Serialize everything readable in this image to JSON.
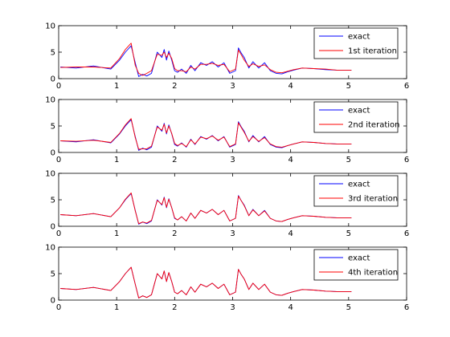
{
  "chart_data": [
    {
      "type": "line",
      "xlim": [
        0,
        6
      ],
      "ylim": [
        0,
        10
      ],
      "xticks": [
        0,
        1,
        2,
        3,
        4,
        5,
        6
      ],
      "yticks": [
        0,
        5,
        10
      ],
      "grid": false,
      "legend_position": "top-right",
      "series": [
        {
          "name": "exact",
          "color": "#0000ff",
          "x": [
            0.03,
            0.3,
            0.6,
            0.9,
            1.05,
            1.15,
            1.25,
            1.32,
            1.38,
            1.45,
            1.52,
            1.6,
            1.7,
            1.78,
            1.82,
            1.86,
            1.9,
            1.95,
            2.0,
            2.05,
            2.12,
            2.2,
            2.28,
            2.35,
            2.45,
            2.55,
            2.65,
            2.75,
            2.85,
            2.95,
            3.05,
            3.1,
            3.15,
            3.2,
            3.28,
            3.35,
            3.45,
            3.55,
            3.65,
            3.75,
            3.85,
            3.95,
            4.05,
            4.2,
            4.4,
            4.6,
            4.8,
            5.05
          ],
          "y": [
            2.2,
            2.0,
            2.4,
            1.8,
            3.5,
            5.0,
            6.2,
            3.0,
            0.4,
            0.8,
            0.5,
            1.0,
            5.0,
            4.0,
            5.5,
            3.5,
            5.2,
            3.5,
            1.5,
            1.2,
            1.8,
            1.0,
            2.5,
            1.5,
            3.0,
            2.5,
            3.2,
            2.2,
            3.0,
            1.0,
            1.5,
            5.8,
            4.8,
            4.0,
            2.0,
            3.2,
            2.0,
            3.0,
            1.5,
            1.0,
            0.9,
            1.3,
            1.6,
            2.0,
            1.9,
            1.7,
            1.6,
            1.6
          ]
        },
        {
          "name": "1st iteration",
          "color": "#ff0000",
          "x": [
            0.03,
            0.3,
            0.6,
            0.9,
            1.05,
            1.15,
            1.25,
            1.32,
            1.38,
            1.45,
            1.52,
            1.6,
            1.7,
            1.78,
            1.82,
            1.86,
            1.9,
            1.95,
            2.0,
            2.05,
            2.12,
            2.2,
            2.28,
            2.35,
            2.45,
            2.55,
            2.65,
            2.75,
            2.85,
            2.95,
            3.05,
            3.1,
            3.15,
            3.2,
            3.28,
            3.35,
            3.45,
            3.55,
            3.65,
            3.75,
            3.85,
            3.95,
            4.05,
            4.2,
            4.4,
            4.6,
            4.8,
            5.05
          ],
          "y": [
            2.1,
            2.2,
            2.2,
            2.0,
            3.8,
            5.5,
            6.7,
            2.5,
            1.0,
            0.6,
            1.0,
            1.5,
            4.6,
            4.4,
            5.0,
            4.0,
            4.8,
            3.8,
            1.9,
            1.5,
            1.5,
            1.3,
            2.2,
            1.8,
            2.7,
            2.7,
            2.9,
            2.5,
            2.7,
            1.3,
            1.8,
            5.4,
            4.5,
            3.5,
            2.3,
            2.8,
            2.3,
            2.6,
            1.7,
            1.2,
            1.1,
            1.4,
            1.7,
            2.0,
            1.9,
            1.8,
            1.6,
            1.6
          ]
        }
      ]
    },
    {
      "type": "line",
      "xlim": [
        0,
        6
      ],
      "ylim": [
        0,
        10
      ],
      "xticks": [
        0,
        1,
        2,
        3,
        4,
        5,
        6
      ],
      "yticks": [
        0,
        5,
        10
      ],
      "grid": false,
      "legend_position": "top-right",
      "series": [
        {
          "name": "exact",
          "color": "#0000ff",
          "x": [
            0.03,
            0.3,
            0.6,
            0.9,
            1.05,
            1.15,
            1.25,
            1.32,
            1.38,
            1.45,
            1.52,
            1.6,
            1.7,
            1.78,
            1.82,
            1.86,
            1.9,
            1.95,
            2.0,
            2.05,
            2.12,
            2.2,
            2.28,
            2.35,
            2.45,
            2.55,
            2.65,
            2.75,
            2.85,
            2.95,
            3.05,
            3.1,
            3.15,
            3.2,
            3.28,
            3.35,
            3.45,
            3.55,
            3.65,
            3.75,
            3.85,
            3.95,
            4.05,
            4.2,
            4.4,
            4.6,
            4.8,
            5.05
          ],
          "y": [
            2.2,
            2.0,
            2.4,
            1.8,
            3.5,
            5.0,
            6.2,
            3.0,
            0.4,
            0.8,
            0.5,
            1.0,
            5.0,
            4.0,
            5.5,
            3.5,
            5.2,
            3.5,
            1.5,
            1.2,
            1.8,
            1.0,
            2.5,
            1.5,
            3.0,
            2.5,
            3.2,
            2.2,
            3.0,
            1.0,
            1.5,
            5.8,
            4.8,
            4.0,
            2.0,
            3.2,
            2.0,
            3.0,
            1.5,
            1.0,
            0.9,
            1.3,
            1.6,
            2.0,
            1.9,
            1.7,
            1.6,
            1.6
          ]
        },
        {
          "name": "2nd iteration",
          "color": "#ff0000",
          "x": [
            0.03,
            0.3,
            0.6,
            0.9,
            1.05,
            1.15,
            1.25,
            1.32,
            1.38,
            1.45,
            1.52,
            1.6,
            1.7,
            1.78,
            1.82,
            1.86,
            1.9,
            1.95,
            2.0,
            2.05,
            2.12,
            2.2,
            2.28,
            2.35,
            2.45,
            2.55,
            2.65,
            2.75,
            2.85,
            2.95,
            3.05,
            3.1,
            3.15,
            3.2,
            3.28,
            3.35,
            3.45,
            3.55,
            3.65,
            3.75,
            3.85,
            3.95,
            4.05,
            4.2,
            4.4,
            4.6,
            4.8,
            5.05
          ],
          "y": [
            2.2,
            2.1,
            2.3,
            1.9,
            3.6,
            5.2,
            6.4,
            2.8,
            0.6,
            0.7,
            0.7,
            1.2,
            4.8,
            4.2,
            5.3,
            3.7,
            5.0,
            3.6,
            1.7,
            1.3,
            1.7,
            1.1,
            2.4,
            1.6,
            2.9,
            2.6,
            3.1,
            2.3,
            2.9,
            1.1,
            1.6,
            5.6,
            4.7,
            3.8,
            2.1,
            3.0,
            2.1,
            2.8,
            1.6,
            1.1,
            1.0,
            1.3,
            1.6,
            2.0,
            1.9,
            1.7,
            1.6,
            1.6
          ]
        }
      ]
    },
    {
      "type": "line",
      "xlim": [
        0,
        6
      ],
      "ylim": [
        0,
        10
      ],
      "xticks": [
        0,
        1,
        2,
        3,
        4,
        5,
        6
      ],
      "yticks": [
        0,
        5,
        10
      ],
      "grid": false,
      "legend_position": "top-right",
      "series": [
        {
          "name": "exact",
          "color": "#0000ff",
          "x": [
            0.03,
            0.3,
            0.6,
            0.9,
            1.05,
            1.15,
            1.25,
            1.32,
            1.38,
            1.45,
            1.52,
            1.6,
            1.7,
            1.78,
            1.82,
            1.86,
            1.9,
            1.95,
            2.0,
            2.05,
            2.12,
            2.2,
            2.28,
            2.35,
            2.45,
            2.55,
            2.65,
            2.75,
            2.85,
            2.95,
            3.05,
            3.1,
            3.15,
            3.2,
            3.28,
            3.35,
            3.45,
            3.55,
            3.65,
            3.75,
            3.85,
            3.95,
            4.05,
            4.2,
            4.4,
            4.6,
            4.8,
            5.05
          ],
          "y": [
            2.2,
            2.0,
            2.4,
            1.8,
            3.5,
            5.0,
            6.2,
            3.0,
            0.4,
            0.8,
            0.5,
            1.0,
            5.0,
            4.0,
            5.5,
            3.5,
            5.2,
            3.5,
            1.5,
            1.2,
            1.8,
            1.0,
            2.5,
            1.5,
            3.0,
            2.5,
            3.2,
            2.2,
            3.0,
            1.0,
            1.5,
            5.8,
            4.8,
            4.0,
            2.0,
            3.2,
            2.0,
            3.0,
            1.5,
            1.0,
            0.9,
            1.3,
            1.6,
            2.0,
            1.9,
            1.7,
            1.6,
            1.6
          ]
        },
        {
          "name": "3rd iteration",
          "color": "#ff0000",
          "x": [
            0.03,
            0.3,
            0.6,
            0.9,
            1.05,
            1.15,
            1.25,
            1.32,
            1.38,
            1.45,
            1.52,
            1.6,
            1.7,
            1.78,
            1.82,
            1.86,
            1.9,
            1.95,
            2.0,
            2.05,
            2.12,
            2.2,
            2.28,
            2.35,
            2.45,
            2.55,
            2.65,
            2.75,
            2.85,
            2.95,
            3.05,
            3.1,
            3.15,
            3.2,
            3.28,
            3.35,
            3.45,
            3.55,
            3.65,
            3.75,
            3.85,
            3.95,
            4.05,
            4.2,
            4.4,
            4.6,
            4.8,
            5.05
          ],
          "y": [
            2.2,
            2.0,
            2.4,
            1.8,
            3.5,
            5.1,
            6.3,
            2.9,
            0.5,
            0.8,
            0.6,
            1.1,
            4.9,
            4.1,
            5.4,
            3.6,
            5.1,
            3.5,
            1.6,
            1.2,
            1.8,
            1.0,
            2.5,
            1.5,
            3.0,
            2.5,
            3.2,
            2.2,
            3.0,
            1.0,
            1.5,
            5.7,
            4.8,
            3.9,
            2.0,
            3.1,
            2.0,
            2.9,
            1.5,
            1.0,
            0.9,
            1.3,
            1.6,
            2.0,
            1.9,
            1.7,
            1.6,
            1.6
          ]
        }
      ]
    },
    {
      "type": "line",
      "xlim": [
        0,
        6
      ],
      "ylim": [
        0,
        10
      ],
      "xticks": [
        0,
        1,
        2,
        3,
        4,
        5,
        6
      ],
      "yticks": [
        0,
        5,
        10
      ],
      "grid": false,
      "legend_position": "top-right",
      "series": [
        {
          "name": "exact",
          "color": "#0000ff",
          "x": [
            0.03,
            0.3,
            0.6,
            0.9,
            1.05,
            1.15,
            1.25,
            1.32,
            1.38,
            1.45,
            1.52,
            1.6,
            1.7,
            1.78,
            1.82,
            1.86,
            1.9,
            1.95,
            2.0,
            2.05,
            2.12,
            2.2,
            2.28,
            2.35,
            2.45,
            2.55,
            2.65,
            2.75,
            2.85,
            2.95,
            3.05,
            3.1,
            3.15,
            3.2,
            3.28,
            3.35,
            3.45,
            3.55,
            3.65,
            3.75,
            3.85,
            3.95,
            4.05,
            4.2,
            4.4,
            4.6,
            4.8,
            5.05
          ],
          "y": [
            2.2,
            2.0,
            2.4,
            1.8,
            3.5,
            5.0,
            6.2,
            3.0,
            0.4,
            0.8,
            0.5,
            1.0,
            5.0,
            4.0,
            5.5,
            3.5,
            5.2,
            3.5,
            1.5,
            1.2,
            1.8,
            1.0,
            2.5,
            1.5,
            3.0,
            2.5,
            3.2,
            2.2,
            3.0,
            1.0,
            1.5,
            5.8,
            4.8,
            4.0,
            2.0,
            3.2,
            2.0,
            3.0,
            1.5,
            1.0,
            0.9,
            1.3,
            1.6,
            2.0,
            1.9,
            1.7,
            1.6,
            1.6
          ]
        },
        {
          "name": "4th iteration",
          "color": "#ff0000",
          "x": [
            0.03,
            0.3,
            0.6,
            0.9,
            1.05,
            1.15,
            1.25,
            1.32,
            1.38,
            1.45,
            1.52,
            1.6,
            1.7,
            1.78,
            1.82,
            1.86,
            1.9,
            1.95,
            2.0,
            2.05,
            2.12,
            2.2,
            2.28,
            2.35,
            2.45,
            2.55,
            2.65,
            2.75,
            2.85,
            2.95,
            3.05,
            3.1,
            3.15,
            3.2,
            3.28,
            3.35,
            3.45,
            3.55,
            3.65,
            3.75,
            3.85,
            3.95,
            4.05,
            4.2,
            4.4,
            4.6,
            4.8,
            5.05
          ],
          "y": [
            2.2,
            2.0,
            2.4,
            1.8,
            3.5,
            5.0,
            6.2,
            3.0,
            0.4,
            0.8,
            0.5,
            1.0,
            5.0,
            4.0,
            5.5,
            3.5,
            5.2,
            3.5,
            1.5,
            1.2,
            1.8,
            1.0,
            2.5,
            1.5,
            3.0,
            2.5,
            3.2,
            2.2,
            3.0,
            1.0,
            1.5,
            5.8,
            4.8,
            4.0,
            2.0,
            3.2,
            2.0,
            3.0,
            1.5,
            1.0,
            0.9,
            1.3,
            1.6,
            2.0,
            1.9,
            1.7,
            1.6,
            1.6
          ]
        }
      ]
    }
  ]
}
